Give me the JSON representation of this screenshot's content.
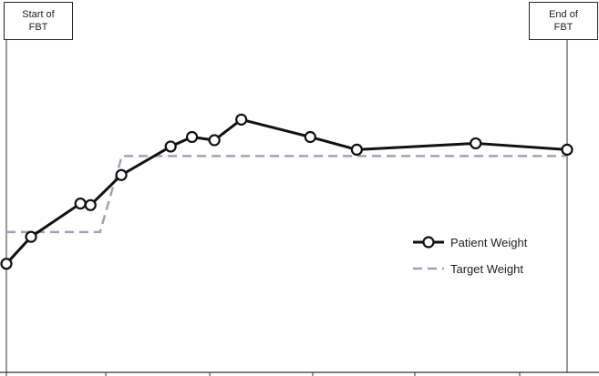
{
  "markers": {
    "start_label": "Start of\nFBT",
    "end_label": "End of\nFBT"
  },
  "chart_data": {
    "type": "line",
    "title": "",
    "xlabel": "",
    "ylabel": "",
    "xlim": [
      0,
      100
    ],
    "ylim": [
      0,
      100
    ],
    "grid": false,
    "legend": "right",
    "events": [
      {
        "name": "Start of FBT",
        "x": 0
      },
      {
        "name": "End of FBT",
        "x": 100
      }
    ],
    "series": [
      {
        "name": "Patient Weight",
        "color": "#111111",
        "style": "solid-markers",
        "x": [
          0,
          4.4,
          13.2,
          15.0,
          20.5,
          29.3,
          33.1,
          37.1,
          41.9,
          54.2,
          62.5,
          83.7,
          100
        ],
        "y": [
          34,
          42.5,
          53,
          52.5,
          62,
          71,
          74,
          73,
          79.5,
          74,
          70,
          72,
          70
        ]
      },
      {
        "name": "Target Weight",
        "color": "#9aa6b8",
        "style": "dashed",
        "x": [
          0,
          16.7,
          20.6,
          100
        ],
        "y": [
          44,
          44,
          68,
          68
        ]
      }
    ]
  }
}
